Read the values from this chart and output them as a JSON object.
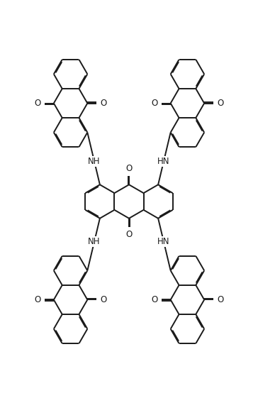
{
  "background": "#ffffff",
  "line_color": "#1a1a1a",
  "line_width": 1.4,
  "dbo": 0.038,
  "figsize": [
    3.64,
    5.68
  ],
  "dpi": 100,
  "xlim": [
    -5.5,
    5.5
  ],
  "ylim": [
    -7.5,
    7.5
  ]
}
